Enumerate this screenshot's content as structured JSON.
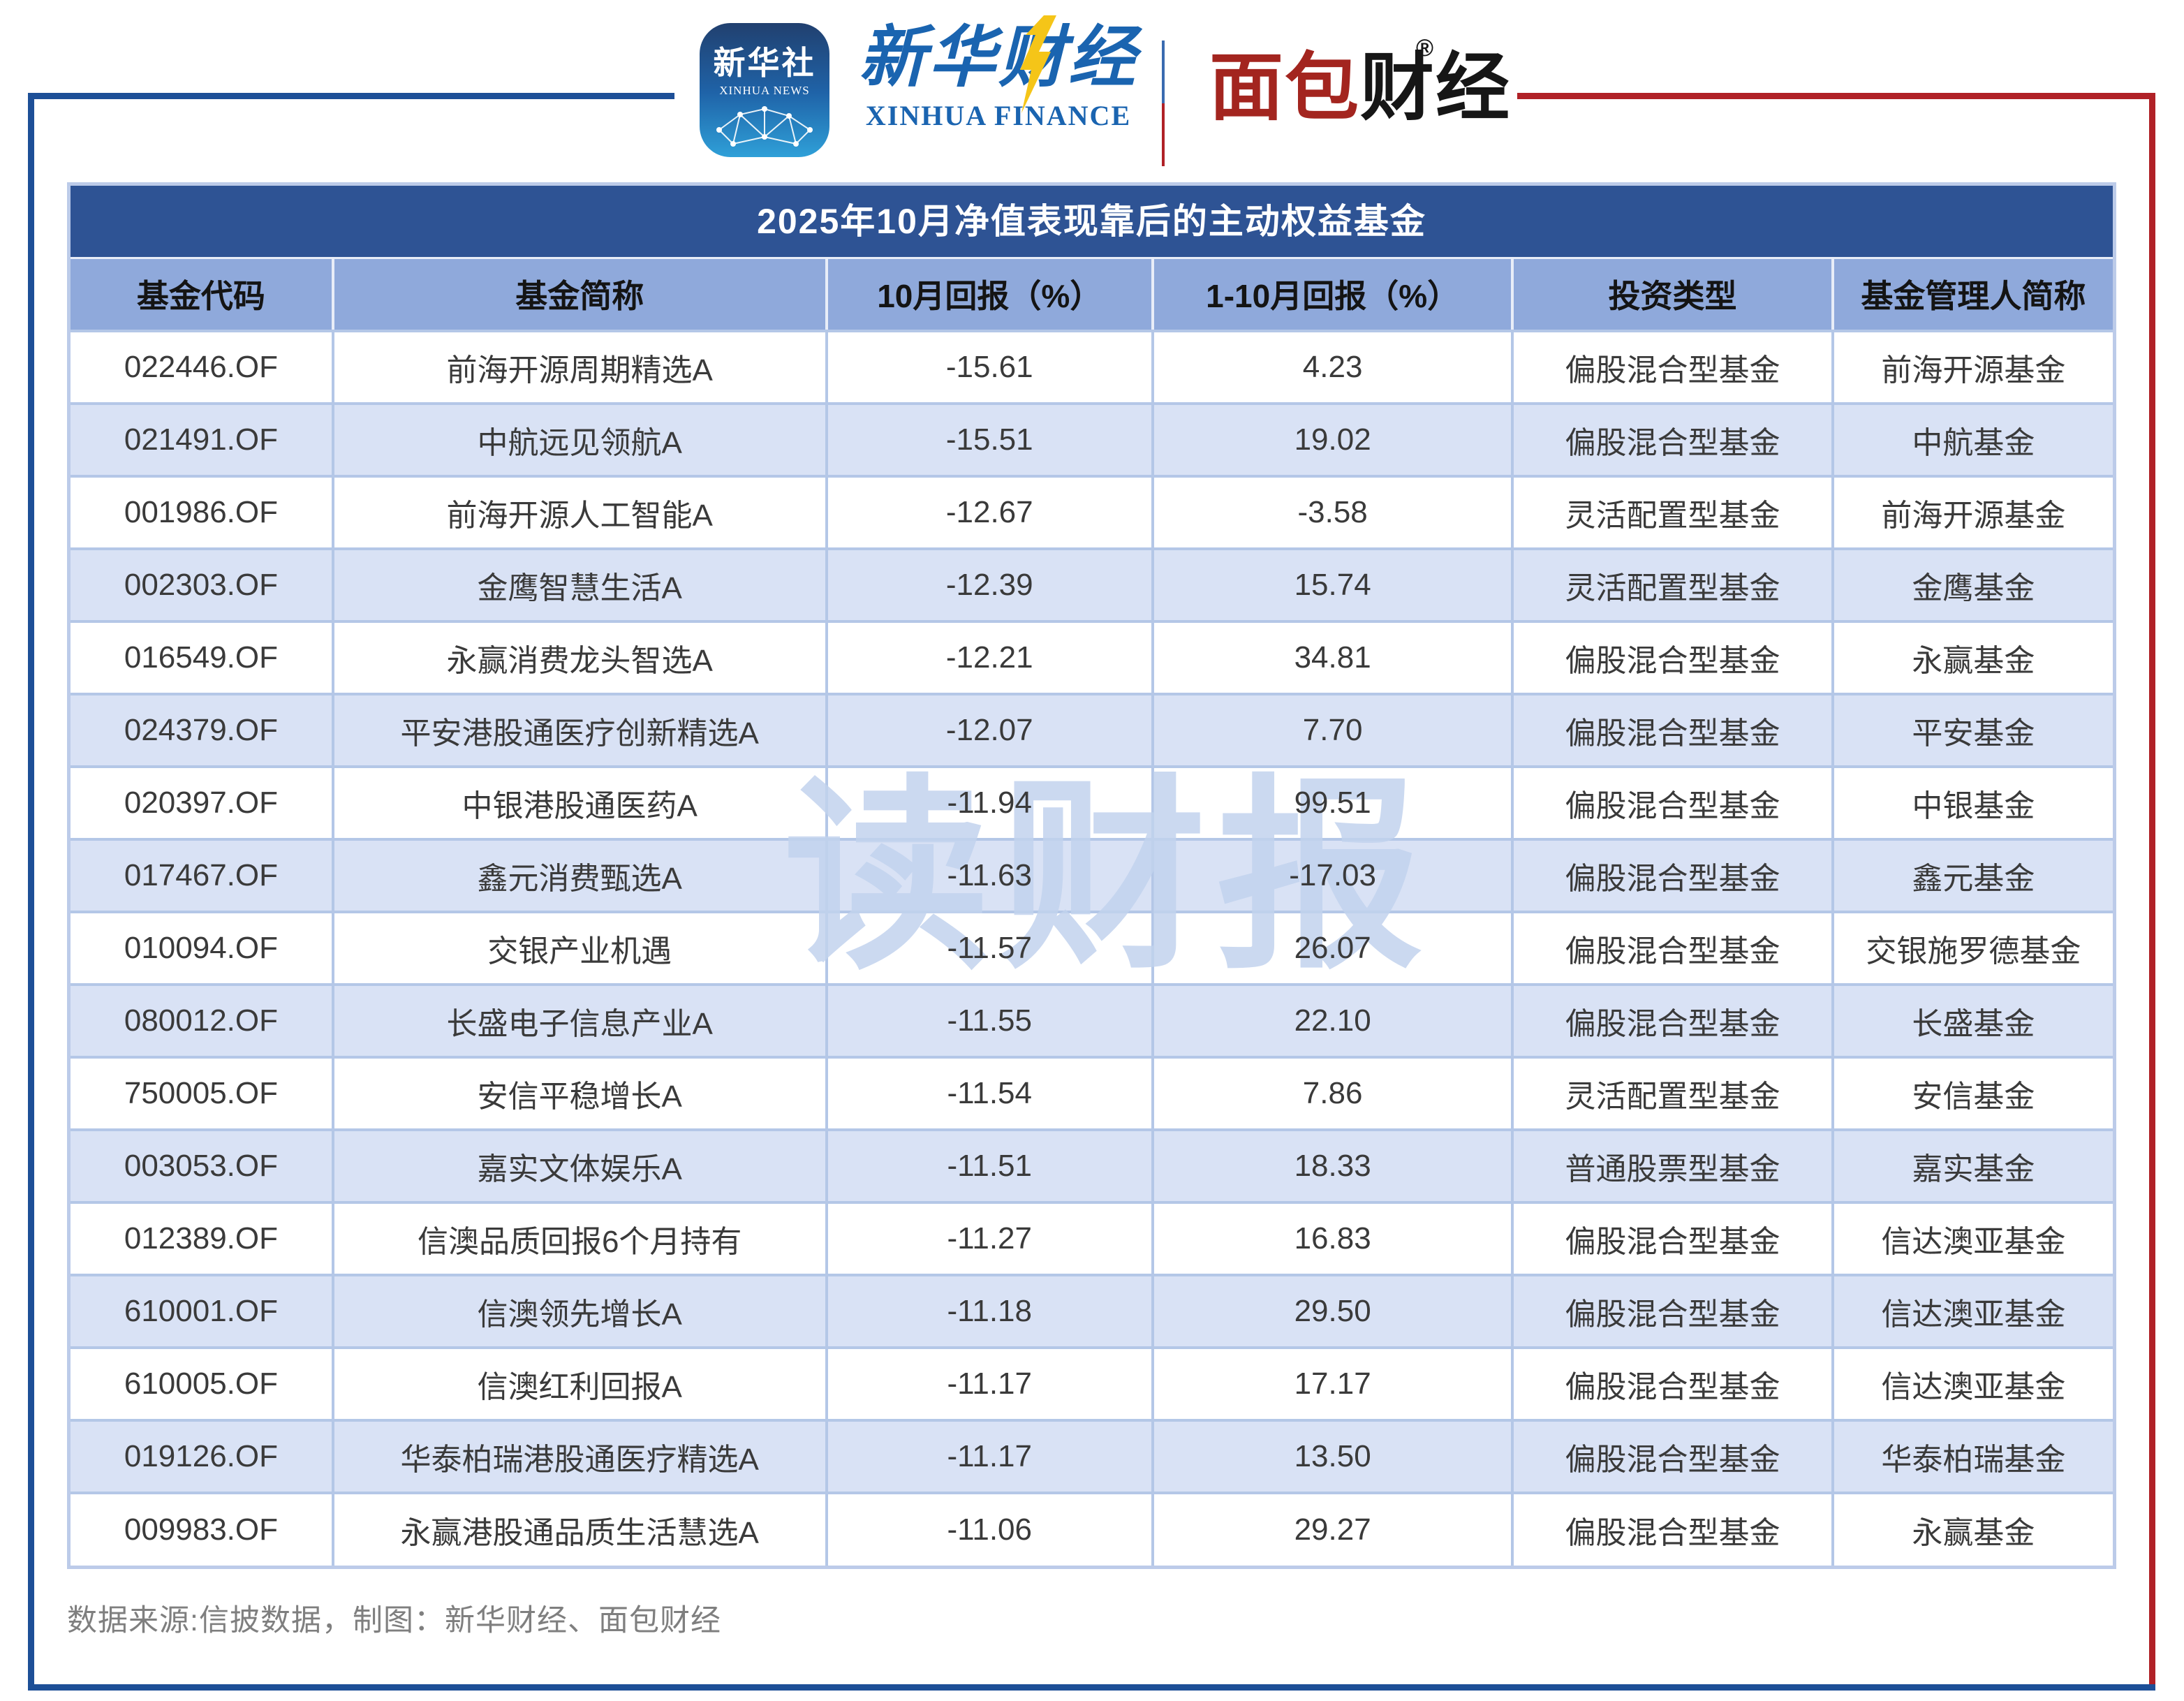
{
  "header": {
    "xinhua_news_app": {
      "title_cn": "新华社",
      "title_en": "XINHUA NEWS"
    },
    "xinhua_finance": {
      "title_cn": "新华财经",
      "title_en": "XINHUA FINANCE"
    },
    "mianbao_caijing": {
      "title_part1": "面包",
      "title_part2": "财经",
      "registered_mark": "®"
    }
  },
  "chart_data": {
    "type": "table",
    "title": "2025年10月净值表现靠后的主动权益基金",
    "columns": [
      "基金代码",
      "基金简称",
      "10月回报（%）",
      "1-10月回报（%）",
      "投资类型",
      "基金管理人简称"
    ],
    "rows": [
      [
        "022446.OF",
        "前海开源周期精选A",
        "-15.61",
        "4.23",
        "偏股混合型基金",
        "前海开源基金"
      ],
      [
        "021491.OF",
        "中航远见领航A",
        "-15.51",
        "19.02",
        "偏股混合型基金",
        "中航基金"
      ],
      [
        "001986.OF",
        "前海开源人工智能A",
        "-12.67",
        "-3.58",
        "灵活配置型基金",
        "前海开源基金"
      ],
      [
        "002303.OF",
        "金鹰智慧生活A",
        "-12.39",
        "15.74",
        "灵活配置型基金",
        "金鹰基金"
      ],
      [
        "016549.OF",
        "永赢消费龙头智选A",
        "-12.21",
        "34.81",
        "偏股混合型基金",
        "永赢基金"
      ],
      [
        "024379.OF",
        "平安港股通医疗创新精选A",
        "-12.07",
        "7.70",
        "偏股混合型基金",
        "平安基金"
      ],
      [
        "020397.OF",
        "中银港股通医药A",
        "-11.94",
        "99.51",
        "偏股混合型基金",
        "中银基金"
      ],
      [
        "017467.OF",
        "鑫元消费甄选A",
        "-11.63",
        "-17.03",
        "偏股混合型基金",
        "鑫元基金"
      ],
      [
        "010094.OF",
        "交银产业机遇",
        "-11.57",
        "26.07",
        "偏股混合型基金",
        "交银施罗德基金"
      ],
      [
        "080012.OF",
        "长盛电子信息产业A",
        "-11.55",
        "22.10",
        "偏股混合型基金",
        "长盛基金"
      ],
      [
        "750005.OF",
        "安信平稳增长A",
        "-11.54",
        "7.86",
        "灵活配置型基金",
        "安信基金"
      ],
      [
        "003053.OF",
        "嘉实文体娱乐A",
        "-11.51",
        "18.33",
        "普通股票型基金",
        "嘉实基金"
      ],
      [
        "012389.OF",
        "信澳品质回报6个月持有",
        "-11.27",
        "16.83",
        "偏股混合型基金",
        "信达澳亚基金"
      ],
      [
        "610001.OF",
        "信澳领先增长A",
        "-11.18",
        "29.50",
        "偏股混合型基金",
        "信达澳亚基金"
      ],
      [
        "610005.OF",
        "信澳红利回报A",
        "-11.17",
        "17.17",
        "偏股混合型基金",
        "信达澳亚基金"
      ],
      [
        "019126.OF",
        "华泰柏瑞港股通医疗精选A",
        "-11.17",
        "13.50",
        "偏股混合型基金",
        "华泰柏瑞基金"
      ],
      [
        "009983.OF",
        "永赢港股通品质生活慧选A",
        "-11.06",
        "29.27",
        "偏股混合型基金",
        "永赢基金"
      ]
    ]
  },
  "watermark": "读财报",
  "footer": "数据来源:信披数据，制图：新华财经、面包财经",
  "colors": {
    "title_blue": "#2E5394",
    "header_blue": "#8FA9DB",
    "stripe_blue": "#D9E2F5",
    "grid_blue": "#B4C7E7",
    "frame_blue": "#1D4F97",
    "frame_red": "#B02127",
    "logo_blue": "#1A64B0",
    "logo_red": "#A3251F",
    "watermark_blue": "#C2D3EE",
    "footer_gray": "#7F7F7F"
  }
}
